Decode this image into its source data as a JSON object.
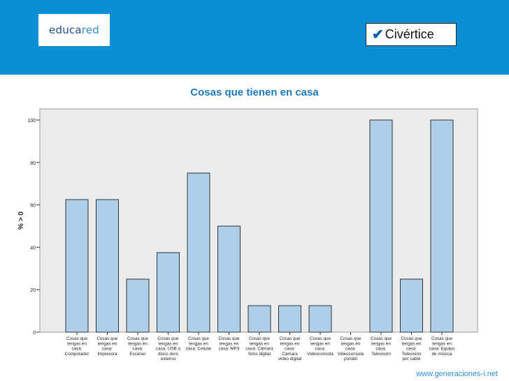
{
  "header": {
    "logo_part1": "educa",
    "logo_part2": "red",
    "brand_check": "✔",
    "brand_name": "Civértice"
  },
  "footer": {
    "url": "www.generaciones-i.net"
  },
  "colors": {
    "banner": "#0a8fd6",
    "bar": "#aecfea",
    "title": "#1c79c0",
    "plot_bg": "#ececec"
  },
  "chart_data": {
    "type": "bar",
    "title": "Cosas que tienen en casa",
    "xlabel": "",
    "ylabel": "% > 0",
    "ylim": [
      0,
      100
    ],
    "yticks": [
      0,
      20,
      40,
      60,
      80,
      100
    ],
    "grid": false,
    "categories": [
      [
        "Cosas que",
        "tengas en",
        "casa:",
        "Computador"
      ],
      [
        "Cosas que",
        "tengas en",
        "casa:",
        "Impresora"
      ],
      [
        "Cosas que",
        "tengas en",
        "casa:",
        "Escáner"
      ],
      [
        "Cosas que",
        "tengas en",
        "casa: USB o",
        "disco duro",
        "externo"
      ],
      [
        "Cosas que",
        "tengas en",
        "casa: Celular"
      ],
      [
        "Cosas que",
        "tengas en",
        "casa: MP3"
      ],
      [
        "Cosas que",
        "tengas en",
        "casa: Cámara",
        "fotos digital"
      ],
      [
        "Cosas que",
        "tengas en",
        "casa:",
        "Cámara",
        "video digital"
      ],
      [
        "Cosas que",
        "tengas en",
        "casa:",
        "Videoconsola"
      ],
      [
        "Cosas que",
        "tengas en",
        "casa:",
        "Videoconsola",
        "portátil"
      ],
      [
        "Cosas que",
        "tengas en",
        "casa:",
        "Televisión"
      ],
      [
        "Cosas que",
        "tengas en",
        "casa:",
        "Televisión",
        "por cable"
      ],
      [
        "Cosas que",
        "tengas en",
        "casa: Equipo",
        "de música"
      ]
    ],
    "values": [
      62.5,
      62.5,
      25,
      37.5,
      75,
      50,
      12.5,
      12.5,
      12.5,
      0,
      100,
      25,
      100
    ]
  }
}
